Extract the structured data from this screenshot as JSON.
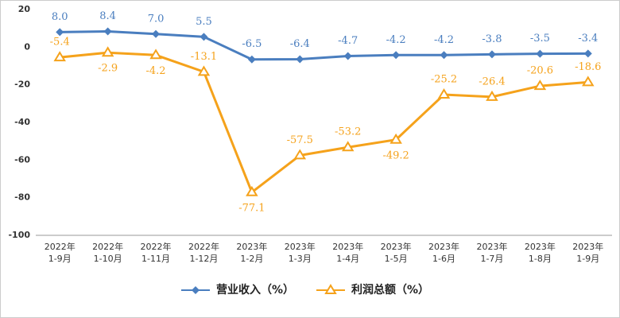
{
  "chart_data": {
    "type": "line",
    "categories": [
      "2022年\n1-9月",
      "2022年\n1-10月",
      "2022年\n1-11月",
      "2022年\n1-12月",
      "2023年\n1-2月",
      "2023年\n1-3月",
      "2023年\n1-4月",
      "2023年\n1-5月",
      "2023年\n1-6月",
      "2023年\n1-7月",
      "2023年\n1-8月",
      "2023年\n1-9月"
    ],
    "series": [
      {
        "name": "营业收入（%）",
        "color": "#4a7ebf",
        "marker": "diamond",
        "values": [
          8.0,
          8.4,
          7.0,
          5.5,
          -6.5,
          -6.4,
          -4.7,
          -4.2,
          -4.2,
          -3.8,
          -3.5,
          -3.4
        ],
        "value_labels": [
          "8.0",
          "8.4",
          "7.0",
          "5.5",
          "-6.5",
          "-6.4",
          "-4.7",
          "-4.2",
          "-4.2",
          "-3.8",
          "-3.5",
          "-3.4"
        ]
      },
      {
        "name": "利润总额（%）",
        "color": "#f5a21b",
        "marker": "triangle",
        "values": [
          -5.4,
          -2.9,
          -4.2,
          -13.1,
          -77.1,
          -57.5,
          -53.2,
          -49.2,
          -25.2,
          -26.4,
          -20.6,
          -18.6
        ],
        "value_labels": [
          "-5.4",
          "-2.9",
          "-4.2",
          "-13.1",
          "-77.1",
          "-57.5",
          "-53.2",
          "-49.2",
          "-25.2",
          "-26.4",
          "-20.6",
          "-18.6"
        ]
      }
    ],
    "ylim": [
      -100,
      20
    ],
    "yticks": [
      -100,
      -80,
      -60,
      -40,
      -20,
      0,
      20
    ],
    "grid": false
  }
}
